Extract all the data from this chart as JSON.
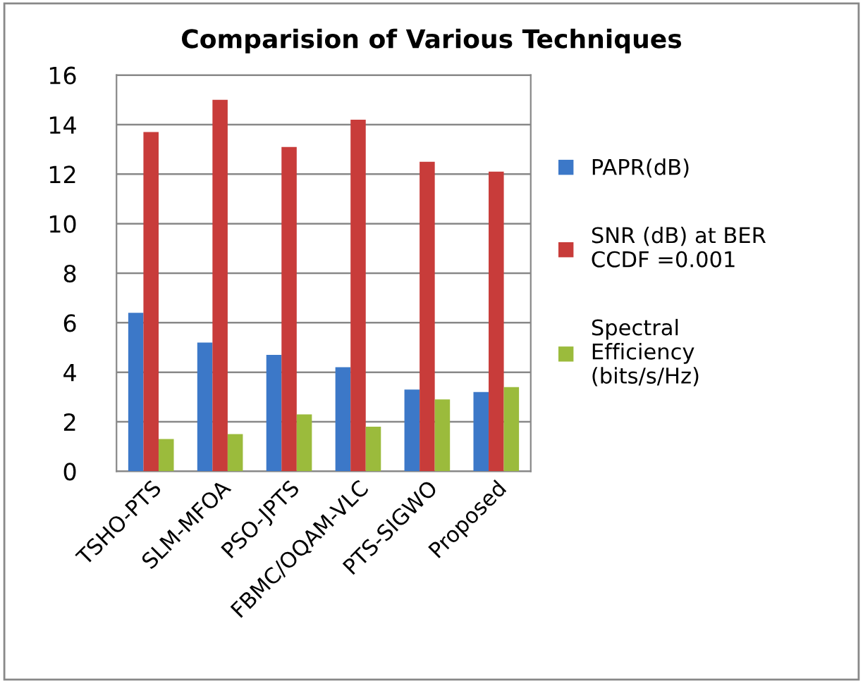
{
  "chart_data": {
    "type": "bar",
    "title": "Comparision of Various Techniques",
    "categories": [
      "TSHO-PTS",
      "SLM-MFOA",
      "PSO-JPTS",
      "FBMC/OQAM-VLC",
      "PTS-SIGWO",
      "Proposed"
    ],
    "series": [
      {
        "name": "PAPR(dB)",
        "color": "#3c78c8",
        "values": [
          6.4,
          5.2,
          4.7,
          4.2,
          3.3,
          3.2
        ]
      },
      {
        "name": "SNR (dB) at BER\nCCDF =0.001",
        "color": "#c83c3a",
        "values": [
          13.7,
          15.0,
          13.1,
          14.2,
          12.5,
          12.1
        ]
      },
      {
        "name": "Spectral\nEfficiency\n(bits/s/Hz)",
        "color": "#9bbb3c",
        "values": [
          1.3,
          1.5,
          2.3,
          1.8,
          2.9,
          3.4
        ]
      }
    ],
    "ylim": [
      0,
      16
    ],
    "yticks": [
      0,
      2,
      4,
      6,
      8,
      10,
      12,
      14,
      16
    ],
    "grid": "y",
    "legend": "right"
  }
}
